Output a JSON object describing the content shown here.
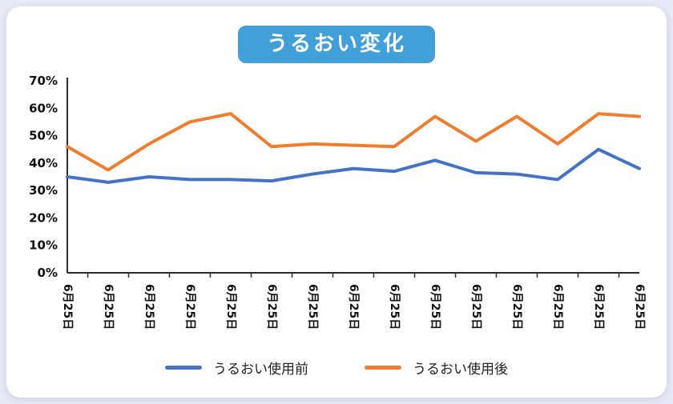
{
  "title": "うるおい変化",
  "colors": {
    "page_bg": "#e8eaf7",
    "card_bg": "#ffffff",
    "title_bg": "#41a0d8",
    "axis": "#2b2b2b",
    "tick_label": "#111111",
    "series_before": "#4472C4",
    "series_after": "#ED7D31"
  },
  "chart_data": {
    "type": "line",
    "title": "うるおい変化",
    "categories": [
      "6月25日",
      "6月25日",
      "6月25日",
      "6月25日",
      "6月25日",
      "6月25日",
      "6月25日",
      "6月25日",
      "6月25日",
      "6月25日",
      "6月25日",
      "6月25日",
      "6月25日",
      "6月25日",
      "6月25日"
    ],
    "series": [
      {
        "name": "うるおい使用前",
        "color": "#4472C4",
        "values": [
          35,
          33,
          35,
          34,
          34,
          33.5,
          36,
          38,
          37,
          41,
          36.5,
          36,
          34,
          45,
          38
        ]
      },
      {
        "name": "うるおい使用後",
        "color": "#ED7D31",
        "values": [
          46,
          37.5,
          47,
          55,
          58,
          46,
          47,
          46.5,
          46,
          57,
          48,
          57,
          47,
          58,
          57
        ]
      }
    ],
    "ylim": [
      0,
      70
    ],
    "ytick_step": 10,
    "ytick_suffix": "%",
    "grid": false,
    "legend_position": "bottom",
    "x_label_rotation": 90
  },
  "legend": {
    "items": [
      {
        "label": "うるおい使用前"
      },
      {
        "label": "うるおい使用後"
      }
    ]
  }
}
